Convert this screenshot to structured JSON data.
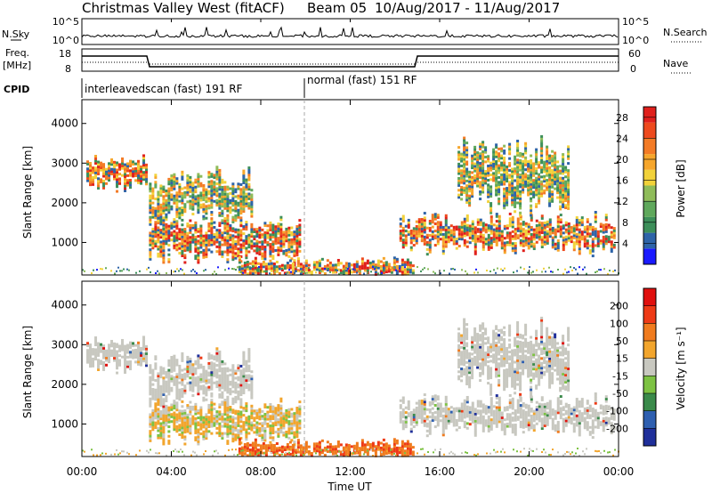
{
  "header": {
    "title": "Christmas Valley West (fitACF)",
    "beam": "Beam 05",
    "date_range": "10/Aug/2017 - 11/Aug/2017"
  },
  "nsky_panel": {
    "left_label": "N.Sky",
    "right_label": "N.Search",
    "left_ticks": [
      "10^5",
      "10^0"
    ],
    "right_ticks": [
      "10^5",
      "10^0"
    ]
  },
  "freq_panel": {
    "left_label_1": "Freq.",
    "left_label_2": "[MHz]",
    "left_ticks": [
      "18",
      "8"
    ],
    "right_label": "Nave",
    "right_ticks": [
      "60",
      "0"
    ]
  },
  "cpid_panel": {
    "label": "CPID",
    "modes": [
      {
        "label": "interleavedscan (fast) 191 RF"
      },
      {
        "label": "normal (fast) 151 RF"
      }
    ]
  },
  "chart_data": [
    {
      "type": "heatmap",
      "name": "power",
      "ylabel": "Slant Range [km]",
      "xlabel": "Time UT",
      "x_ticks": [
        "00:00",
        "04:00",
        "08:00",
        "12:00",
        "16:00",
        "20:00",
        "00:00"
      ],
      "x_range_hours": [
        0,
        24
      ],
      "y_ticks": [
        "1000",
        "2000",
        "3000",
        "4000"
      ],
      "y_range_km": [
        180,
        4600
      ],
      "colorbar": {
        "label": "Power [dB]",
        "ticks": [
          "4",
          "8",
          "12",
          "16",
          "20",
          "24",
          "28"
        ],
        "colors": [
          "#1a1aff",
          "#2e64a8",
          "#3d8f5a",
          "#5fa85c",
          "#8fbc5a",
          "#f2d23a",
          "#f6a62c",
          "#f37b26",
          "#ee4a1e",
          "#e0201c"
        ]
      },
      "echo_regions": [
        {
          "t0": 0.2,
          "t1": 2.9,
          "r0": 2400,
          "r1": 3200,
          "level": "high"
        },
        {
          "t0": 3.0,
          "t1": 7.6,
          "r0": 1600,
          "r1": 2800,
          "level": "medium"
        },
        {
          "t0": 3.0,
          "t1": 9.8,
          "r0": 600,
          "r1": 1600,
          "level": "high"
        },
        {
          "t0": 7.0,
          "t1": 14.8,
          "r0": 200,
          "r1": 600,
          "level": "high"
        },
        {
          "t0": 14.2,
          "t1": 23.8,
          "r0": 800,
          "r1": 1700,
          "level": "high"
        },
        {
          "t0": 16.8,
          "t1": 21.8,
          "r0": 1900,
          "r1": 3500,
          "level": "medium"
        }
      ]
    },
    {
      "type": "heatmap",
      "name": "velocity",
      "ylabel": "Slant Range [km]",
      "xlabel": "Time UT",
      "x_ticks": [
        "00:00",
        "04:00",
        "08:00",
        "12:00",
        "16:00",
        "20:00",
        "00:00"
      ],
      "x_range_hours": [
        0,
        24
      ],
      "y_ticks": [
        "1000",
        "2000",
        "3000",
        "4000"
      ],
      "y_range_km": [
        180,
        4600
      ],
      "colorbar": {
        "label": "Velocity [m s⁻¹]",
        "ticks": [
          "200",
          "100",
          "50",
          "15",
          "-15",
          "-50",
          "-100",
          "-200"
        ],
        "colors": [
          "#1f2f9a",
          "#2e5fb0",
          "#3a8a4a",
          "#7dc243",
          "#c8c8c0",
          "#f2a52d",
          "#f07b1e",
          "#ee3a16",
          "#e0100e"
        ]
      }
    }
  ]
}
